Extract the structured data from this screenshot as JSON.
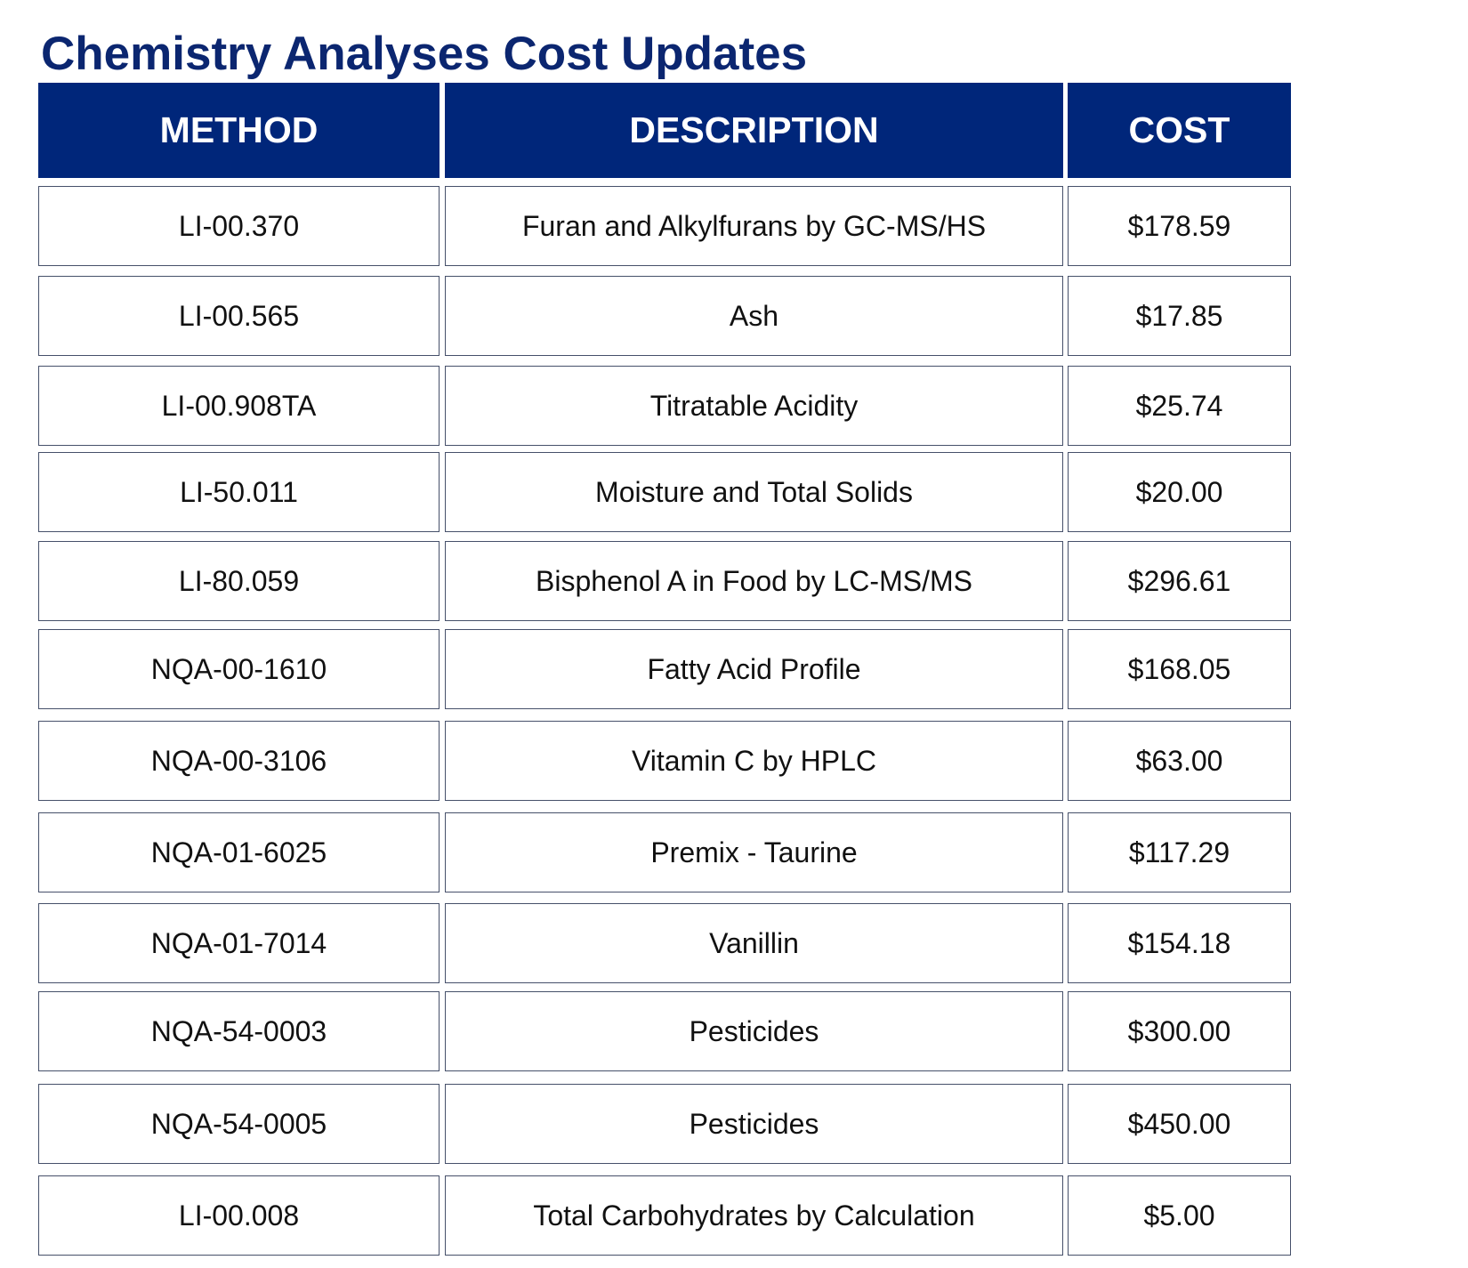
{
  "title": "Chemistry Analyses Cost Updates",
  "table": {
    "headers": {
      "method": "METHOD",
      "description": "DESCRIPTION",
      "cost": "COST"
    },
    "rows": [
      {
        "method": "LI-00.370",
        "description": "Furan and Alkylfurans by GC-MS/HS",
        "cost": "$178.59"
      },
      {
        "method": "LI-00.565",
        "description": "Ash",
        "cost": "$17.85"
      },
      {
        "method": "LI-00.908TA",
        "description": "Titratable Acidity",
        "cost": "$25.74"
      },
      {
        "method": "LI-50.011",
        "description": "Moisture and Total Solids",
        "cost": "$20.00"
      },
      {
        "method": "LI-80.059",
        "description": "Bisphenol A in Food by LC-MS/MS",
        "cost": "$296.61"
      },
      {
        "method": "NQA-00-1610",
        "description": "Fatty Acid Profile",
        "cost": "$168.05"
      },
      {
        "method": "NQA-00-3106",
        "description": "Vitamin C by HPLC",
        "cost": "$63.00"
      },
      {
        "method": "NQA-01-6025",
        "description": "Premix - Taurine",
        "cost": "$117.29"
      },
      {
        "method": "NQA-01-7014",
        "description": "Vanillin",
        "cost": "$154.18"
      },
      {
        "method": "NQA-54-0003",
        "description": "Pesticides",
        "cost": "$300.00"
      },
      {
        "method": "NQA-54-0005",
        "description": "Pesticides",
        "cost": "$450.00"
      },
      {
        "method": "LI-00.008",
        "description": "Total Carbohydrates by Calculation",
        "cost": "$5.00"
      }
    ]
  },
  "colors": {
    "title": "#0b2670",
    "header_background": "#00267a",
    "header_text": "#ffffff",
    "cell_border": "#46506a"
  }
}
